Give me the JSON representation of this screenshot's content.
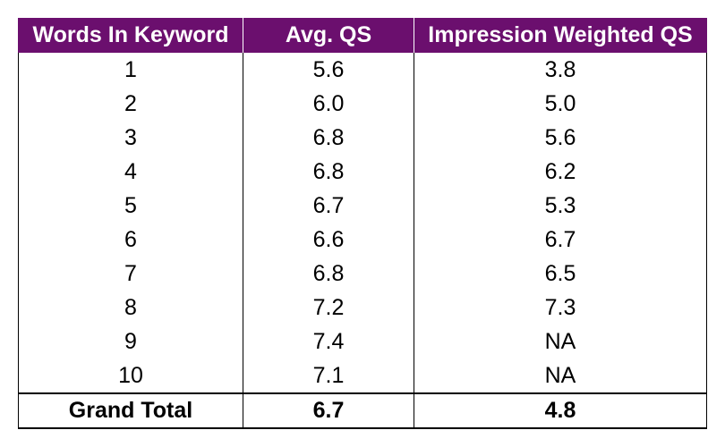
{
  "chart_data": {
    "type": "table",
    "columns": [
      "Words In Keyword",
      "Avg. QS",
      "Impression Weighted QS"
    ],
    "rows": [
      [
        "1",
        "5.6",
        "3.8"
      ],
      [
        "2",
        "6.0",
        "5.0"
      ],
      [
        "3",
        "6.8",
        "5.6"
      ],
      [
        "4",
        "6.8",
        "6.2"
      ],
      [
        "5",
        "6.7",
        "5.3"
      ],
      [
        "6",
        "6.6",
        "6.7"
      ],
      [
        "7",
        "6.8",
        "6.5"
      ],
      [
        "8",
        "7.2",
        "7.3"
      ],
      [
        "9",
        "7.4",
        "NA"
      ],
      [
        "10",
        "7.1",
        "NA"
      ]
    ],
    "total": [
      "Grand Total",
      "6.7",
      "4.8"
    ]
  },
  "colors": {
    "header_background": "#6b0f6e",
    "header_text": "#ffffff",
    "border": "#000000"
  }
}
